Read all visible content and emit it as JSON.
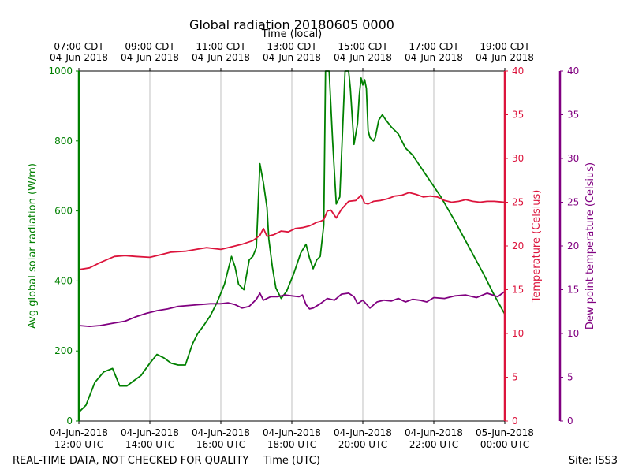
{
  "chart_data": {
    "type": "line",
    "title": "Global radiation 20180605 0000",
    "top_axis_label": "Time (local)",
    "xlabel": "Time (UTC)",
    "ylabel_left": "Avg global solar radiation (W/m)",
    "ylabel_right1": "Temperature (Celsius)",
    "ylabel_right2": "Dew point temperature (Celsius)",
    "footer_left": "REAL-TIME DATA, NOT CHECKED FOR QUALITY",
    "footer_right": "Site: ISS3",
    "xlim": [
      12,
      24
    ],
    "ylim_left": [
      0,
      1000
    ],
    "ylim_right": [
      0,
      40
    ],
    "grid": "vertical",
    "colors": {
      "radiation": "#008000",
      "temperature": "#dc143c",
      "dewpoint": "#800080"
    },
    "bottom_ticks": [
      {
        "x": 12,
        "line1": "04-Jun-2018",
        "line2": "12:00 UTC"
      },
      {
        "x": 14,
        "line1": "04-Jun-2018",
        "line2": "14:00 UTC"
      },
      {
        "x": 16,
        "line1": "04-Jun-2018",
        "line2": "16:00 UTC"
      },
      {
        "x": 18,
        "line1": "04-Jun-2018",
        "line2": "18:00 UTC"
      },
      {
        "x": 20,
        "line1": "04-Jun-2018",
        "line2": "20:00 UTC"
      },
      {
        "x": 22,
        "line1": "04-Jun-2018",
        "line2": "22:00 UTC"
      },
      {
        "x": 24,
        "line1": "05-Jun-2018",
        "line2": "00:00 UTC"
      }
    ],
    "top_ticks": [
      {
        "x": 12,
        "line1": "07:00 CDT",
        "line2": "04-Jun-2018"
      },
      {
        "x": 14,
        "line1": "09:00 CDT",
        "line2": "04-Jun-2018"
      },
      {
        "x": 16,
        "line1": "11:00 CDT",
        "line2": "04-Jun-2018"
      },
      {
        "x": 18,
        "line1": "13:00 CDT",
        "line2": "04-Jun-2018"
      },
      {
        "x": 20,
        "line1": "15:00 CDT",
        "line2": "04-Jun-2018"
      },
      {
        "x": 22,
        "line1": "17:00 CDT",
        "line2": "04-Jun-2018"
      },
      {
        "x": 24,
        "line1": "19:00 CDT",
        "line2": "04-Jun-2018"
      }
    ],
    "left_ticks": [
      0,
      200,
      400,
      600,
      800,
      1000
    ],
    "right_ticks": [
      0,
      5,
      10,
      15,
      20,
      25,
      30,
      35,
      40
    ],
    "series": [
      {
        "name": "Global radiation",
        "axis": "left",
        "color": "#008000",
        "x": [
          12.0,
          12.2,
          12.45,
          12.7,
          12.95,
          13.15,
          13.35,
          13.55,
          13.75,
          14.0,
          14.2,
          14.4,
          14.6,
          14.8,
          15.0,
          15.2,
          15.35,
          15.5,
          15.7,
          15.9,
          16.1,
          16.3,
          16.4,
          16.5,
          16.65,
          16.8,
          16.9,
          17.0,
          17.1,
          17.2,
          17.3,
          17.35,
          17.45,
          17.55,
          17.7,
          17.85,
          18.05,
          18.25,
          18.4,
          18.5,
          18.6,
          18.7,
          18.8,
          18.9,
          18.95,
          19.05,
          19.15,
          19.25,
          19.35,
          19.5,
          19.6,
          19.65,
          19.75,
          19.85,
          19.9,
          19.95,
          20.0,
          20.05,
          20.1,
          20.15,
          20.2,
          20.3,
          20.35,
          20.45,
          20.55,
          20.65,
          20.8,
          21.0,
          21.2,
          21.4,
          21.8,
          22.2,
          22.6,
          23.0,
          23.4,
          23.7,
          24.0
        ],
        "values": [
          25,
          45,
          110,
          140,
          150,
          100,
          100,
          115,
          130,
          165,
          190,
          180,
          165,
          160,
          160,
          220,
          250,
          270,
          300,
          340,
          390,
          470,
          440,
          390,
          375,
          460,
          470,
          495,
          735,
          680,
          610,
          520,
          440,
          380,
          350,
          370,
          420,
          480,
          505,
          465,
          435,
          460,
          470,
          560,
          1000,
          1000,
          800,
          620,
          640,
          1000,
          1000,
          950,
          790,
          850,
          930,
          980,
          960,
          975,
          950,
          830,
          810,
          800,
          810,
          860,
          875,
          860,
          840,
          820,
          780,
          760,
          700,
          640,
          570,
          495,
          420,
          360,
          305
        ]
      },
      {
        "name": "Temperature",
        "axis": "right",
        "color": "#dc143c",
        "x": [
          12.0,
          12.3,
          12.6,
          13.0,
          13.3,
          13.6,
          14.0,
          14.3,
          14.6,
          15.0,
          15.3,
          15.6,
          16.0,
          16.3,
          16.6,
          16.9,
          17.1,
          17.2,
          17.3,
          17.5,
          17.7,
          17.9,
          18.1,
          18.3,
          18.5,
          18.7,
          18.8,
          18.9,
          19.0,
          19.1,
          19.25,
          19.4,
          19.6,
          19.8,
          19.95,
          20.05,
          20.15,
          20.3,
          20.5,
          20.7,
          20.9,
          21.1,
          21.3,
          21.5,
          21.7,
          21.9,
          22.1,
          22.3,
          22.5,
          22.7,
          22.9,
          23.1,
          23.3,
          23.5,
          23.7,
          24.0
        ],
        "values": [
          17.3,
          17.5,
          18.1,
          18.8,
          18.9,
          18.8,
          18.7,
          19.0,
          19.3,
          19.4,
          19.6,
          19.8,
          19.6,
          19.9,
          20.2,
          20.6,
          21.2,
          22.0,
          21.1,
          21.3,
          21.7,
          21.6,
          22.0,
          22.1,
          22.3,
          22.7,
          22.8,
          23.0,
          24.0,
          24.1,
          23.2,
          24.2,
          25.1,
          25.2,
          25.8,
          24.9,
          24.8,
          25.1,
          25.2,
          25.4,
          25.7,
          25.8,
          26.1,
          25.9,
          25.6,
          25.7,
          25.6,
          25.2,
          25.0,
          25.1,
          25.3,
          25.1,
          25.0,
          25.1,
          25.1,
          25.0
        ]
      },
      {
        "name": "Dew point temperature",
        "axis": "right",
        "color": "#800080",
        "x": [
          12.0,
          12.3,
          12.6,
          13.0,
          13.3,
          13.6,
          13.9,
          14.2,
          14.5,
          14.8,
          15.1,
          15.4,
          15.7,
          16.0,
          16.2,
          16.4,
          16.6,
          16.8,
          17.0,
          17.1,
          17.2,
          17.4,
          17.6,
          17.8,
          18.0,
          18.2,
          18.3,
          18.4,
          18.5,
          18.6,
          18.8,
          19.0,
          19.2,
          19.4,
          19.6,
          19.75,
          19.85,
          20.0,
          20.2,
          20.4,
          20.6,
          20.8,
          21.0,
          21.2,
          21.4,
          21.6,
          21.8,
          22.0,
          22.3,
          22.6,
          22.9,
          23.2,
          23.5,
          23.8,
          24.0
        ],
        "values": [
          10.9,
          10.8,
          10.9,
          11.2,
          11.4,
          11.9,
          12.3,
          12.6,
          12.8,
          13.1,
          13.2,
          13.3,
          13.4,
          13.4,
          13.5,
          13.3,
          12.9,
          13.1,
          13.9,
          14.6,
          13.8,
          14.2,
          14.2,
          14.4,
          14.3,
          14.2,
          14.4,
          13.3,
          12.8,
          12.9,
          13.4,
          14.0,
          13.8,
          14.5,
          14.6,
          14.2,
          13.4,
          13.8,
          12.9,
          13.6,
          13.8,
          13.7,
          14.0,
          13.6,
          13.9,
          13.8,
          13.6,
          14.1,
          14.0,
          14.3,
          14.4,
          14.1,
          14.6,
          14.2,
          14.8
        ]
      }
    ]
  }
}
